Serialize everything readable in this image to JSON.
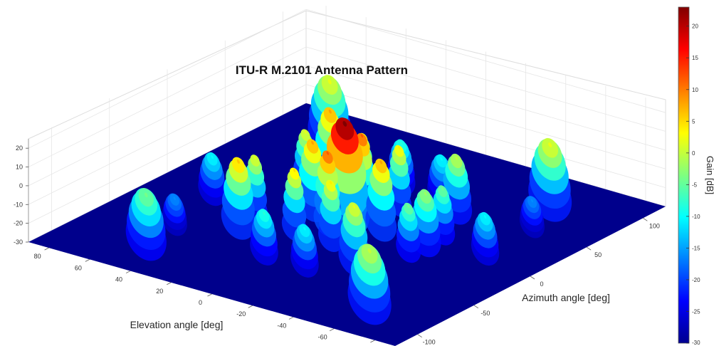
{
  "chart_data": {
    "type": "surface",
    "title": "ITU-R M.2101 Antenna Pattern",
    "xlabel": "Azimuth angle [deg]",
    "ylabel": "Elevation angle [deg]",
    "zlabel": "",
    "colorbar_label": "Gain [dB]",
    "colormap": "jet",
    "xlim": [
      -120,
      120
    ],
    "ylim": [
      -90,
      90
    ],
    "zlim": [
      -30,
      25
    ],
    "clim": [
      -30,
      23
    ],
    "xticks": [
      "-100",
      "-50",
      "0",
      "50",
      "100"
    ],
    "yticks": [
      "80",
      "60",
      "40",
      "20",
      "0",
      "-20",
      "-40",
      "-60",
      "-80"
    ],
    "zticks": [
      "20",
      "10",
      "0",
      "-10",
      "-20",
      "-30"
    ],
    "colorbar_ticks": [
      "20",
      "15",
      "10",
      "5",
      "0",
      "-5",
      "-10",
      "-15",
      "-20",
      "-25",
      "-30"
    ],
    "floor_gain": -30,
    "grid": true,
    "lobes": [
      {
        "az": 0,
        "el": 2,
        "gain": 23,
        "r": 16
      },
      {
        "az": -15,
        "el": 2,
        "gain": 12,
        "r": 9
      },
      {
        "az": 15,
        "el": 2,
        "gain": 12,
        "r": 9
      },
      {
        "az": 0,
        "el": 18,
        "gain": 8,
        "r": 10
      },
      {
        "az": 0,
        "el": -16,
        "gain": 8,
        "r": 10
      },
      {
        "az": -30,
        "el": 10,
        "gain": 5,
        "r": 8
      },
      {
        "az": 30,
        "el": 10,
        "gain": 5,
        "r": 8
      },
      {
        "az": -30,
        "el": -8,
        "gain": 4,
        "r": 8
      },
      {
        "az": 30,
        "el": -8,
        "gain": 4,
        "r": 8
      },
      {
        "az": 40,
        "el": 32,
        "gain": 8,
        "r": 11
      },
      {
        "az": -40,
        "el": 32,
        "gain": 6,
        "r": 11
      },
      {
        "az": -22,
        "el": 34,
        "gain": 2,
        "r": 8
      },
      {
        "az": 22,
        "el": 34,
        "gain": 2,
        "r": 8
      },
      {
        "az": -45,
        "el": -28,
        "gain": 2,
        "r": 10
      },
      {
        "az": 45,
        "el": -28,
        "gain": 0,
        "r": 10
      },
      {
        "az": 0,
        "el": -38,
        "gain": -2,
        "r": 10
      },
      {
        "az": -15,
        "el": -38,
        "gain": -4,
        "r": 8
      },
      {
        "az": 15,
        "el": -38,
        "gain": -4,
        "r": 8
      },
      {
        "az": 85,
        "el": 58,
        "gain": 2,
        "r": 14
      },
      {
        "az": -85,
        "el": -58,
        "gain": 0,
        "r": 14
      },
      {
        "az": 85,
        "el": -52,
        "gain": 2,
        "r": 14
      },
      {
        "az": -85,
        "el": 52,
        "gain": -4,
        "r": 13
      },
      {
        "az": -60,
        "el": 8,
        "gain": -8,
        "r": 9
      },
      {
        "az": 60,
        "el": 8,
        "gain": -8,
        "r": 9
      },
      {
        "az": -60,
        "el": -12,
        "gain": -10,
        "r": 9
      },
      {
        "az": 60,
        "el": -12,
        "gain": -10,
        "r": 9
      },
      {
        "az": -10,
        "el": 62,
        "gain": -10,
        "r": 9
      },
      {
        "az": 10,
        "el": -62,
        "gain": -10,
        "r": 9
      },
      {
        "az": -55,
        "el": 55,
        "gain": -16,
        "r": 8
      },
      {
        "az": 55,
        "el": -60,
        "gain": -16,
        "r": 8
      }
    ]
  }
}
